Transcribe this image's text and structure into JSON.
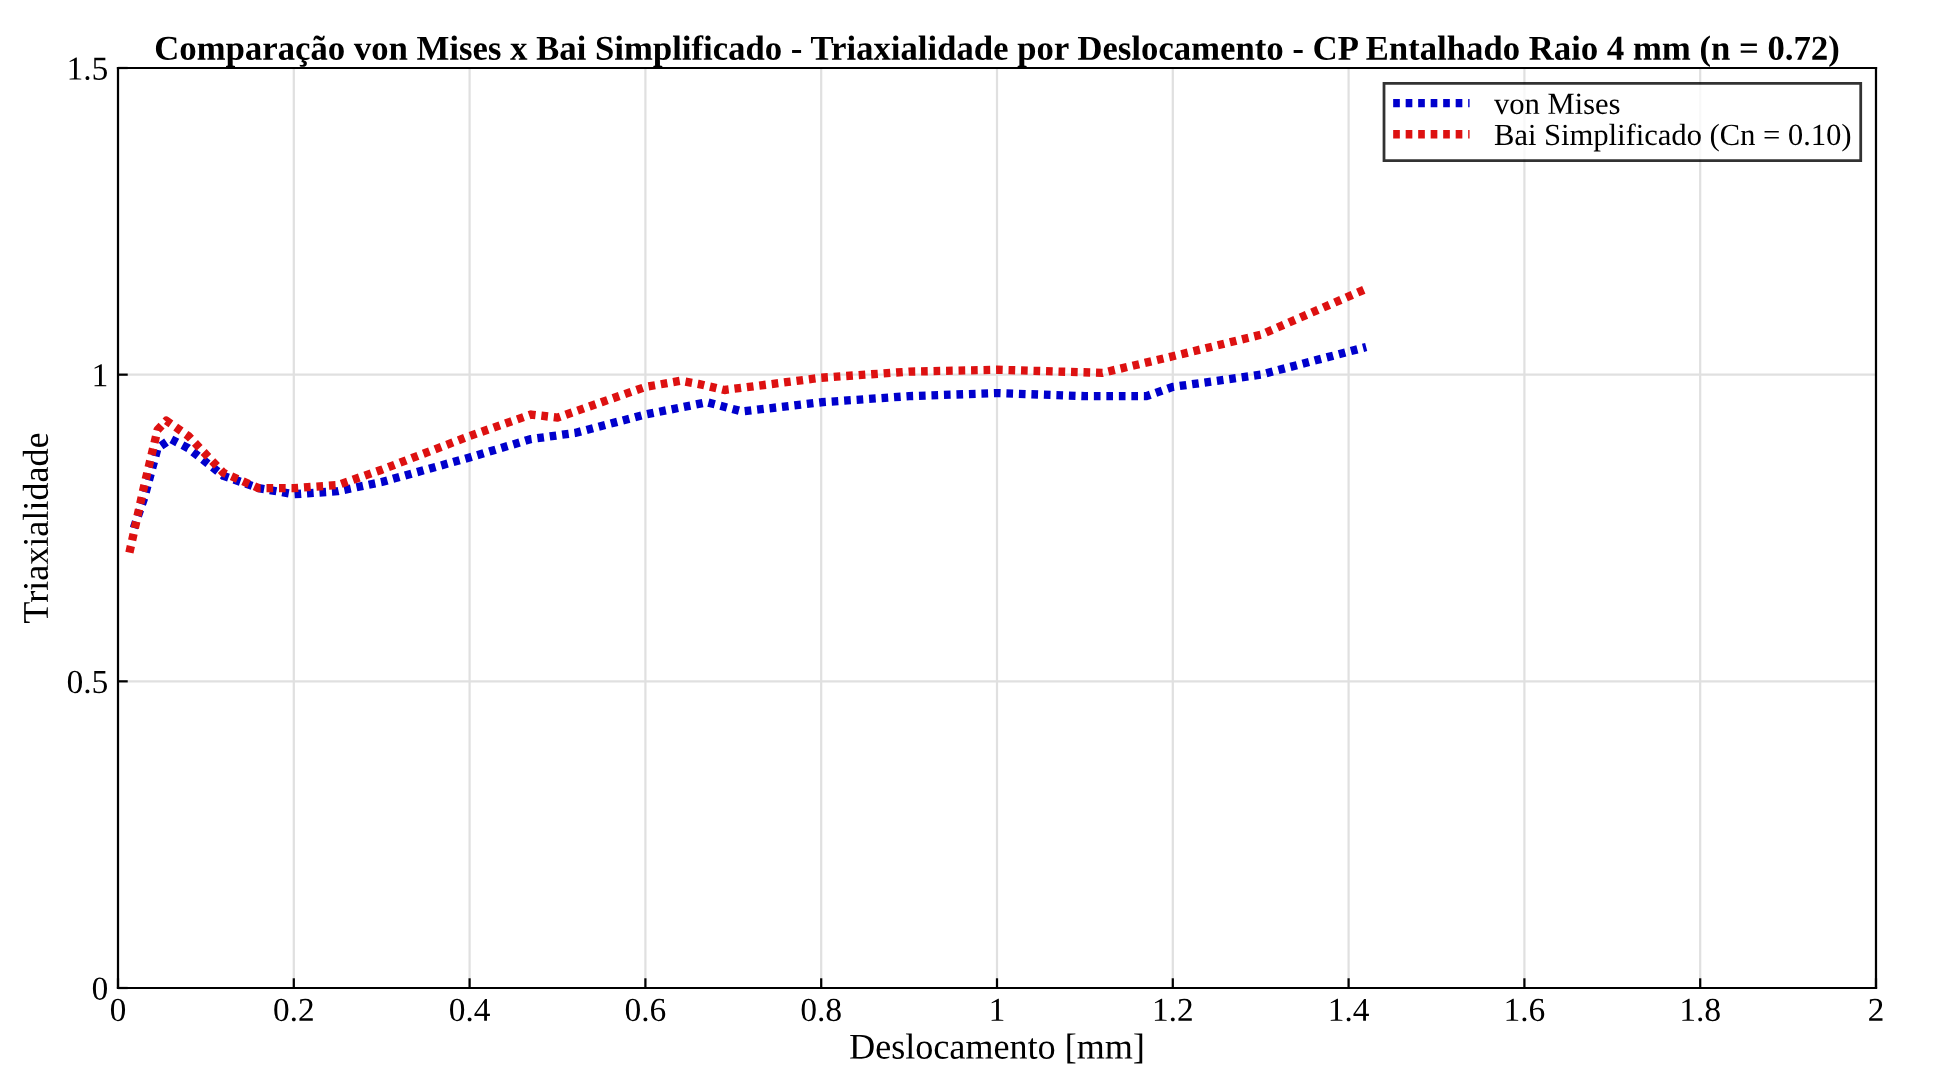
{
  "chart_data": {
    "type": "line",
    "title": "Comparação von Mises x Bai Simplificado - Triaxialidade por Deslocamento - CP Entalhado Raio 4 mm (n = 0.72)",
    "xlabel": "Deslocamento [mm]",
    "ylabel": "Triaxialidade",
    "xlim": [
      0,
      2
    ],
    "ylim": [
      0,
      1.5
    ],
    "xticks": [
      0,
      0.2,
      0.4,
      0.6,
      0.8,
      1,
      1.2,
      1.4,
      1.6,
      1.8,
      2
    ],
    "yticks": [
      0,
      0.5,
      1,
      1.5
    ],
    "grid": true,
    "legend": "top right",
    "line_style": "dotted",
    "marker": "none",
    "series": [
      {
        "name": "von Mises",
        "color": "#0000cc",
        "x": [
          0.018,
          0.03,
          0.045,
          0.06,
          0.08,
          0.12,
          0.16,
          0.2,
          0.25,
          0.3,
          0.4,
          0.47,
          0.52,
          0.6,
          0.67,
          0.71,
          0.8,
          0.9,
          1.0,
          1.1,
          1.17,
          1.2,
          1.3,
          1.42
        ],
        "values": [
          0.75,
          0.8,
          0.88,
          0.895,
          0.88,
          0.835,
          0.815,
          0.805,
          0.81,
          0.825,
          0.865,
          0.895,
          0.905,
          0.935,
          0.955,
          0.94,
          0.955,
          0.965,
          0.97,
          0.965,
          0.965,
          0.98,
          1.0,
          1.045
        ]
      },
      {
        "name": "Bai Simplificado (Cn = 0.10)",
        "color": "#dd1111",
        "x": [
          0.013,
          0.03,
          0.045,
          0.055,
          0.08,
          0.12,
          0.16,
          0.2,
          0.25,
          0.3,
          0.4,
          0.47,
          0.5,
          0.55,
          0.6,
          0.64,
          0.66,
          0.69,
          0.8,
          0.9,
          1.0,
          1.12,
          1.2,
          1.3,
          1.42
        ],
        "values": [
          0.71,
          0.82,
          0.91,
          0.925,
          0.9,
          0.84,
          0.815,
          0.815,
          0.82,
          0.845,
          0.9,
          0.935,
          0.93,
          0.955,
          0.98,
          0.99,
          0.985,
          0.975,
          0.995,
          1.005,
          1.008,
          1.003,
          1.03,
          1.065,
          1.14
        ]
      }
    ]
  }
}
